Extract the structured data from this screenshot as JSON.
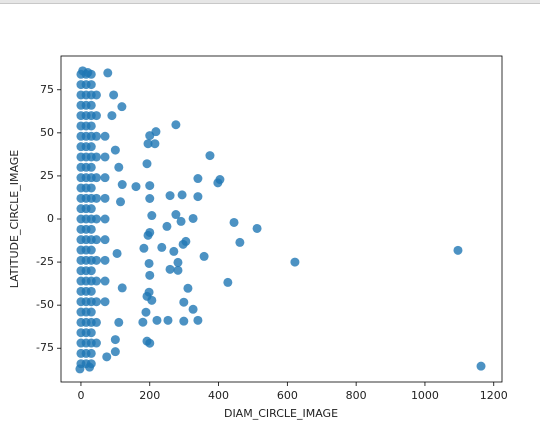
{
  "chart_data": {
    "type": "scatter",
    "xlabel": "DIAM_CIRCLE_IMAGE",
    "ylabel": "LATITUDE_CIRCLE_IMAGE",
    "color": "#1f77b4",
    "xlim": [
      -58,
      1224
    ],
    "ylim": [
      -94.6,
      94.6
    ],
    "xticks": [
      0,
      200,
      400,
      600,
      800,
      1000,
      1200
    ],
    "yticks": [
      -75,
      -50,
      -25,
      0,
      25,
      50,
      75
    ],
    "x": [
      0,
      0,
      0,
      0,
      0,
      0,
      0,
      0,
      0,
      0,
      0,
      0,
      0,
      0,
      0,
      0,
      0,
      0,
      0,
      0,
      0,
      0,
      0,
      0,
      0,
      0,
      0,
      0,
      0,
      15,
      15,
      15,
      15,
      15,
      15,
      15,
      15,
      15,
      15,
      15,
      15,
      15,
      15,
      15,
      15,
      15,
      15,
      15,
      15,
      15,
      15,
      15,
      15,
      15,
      15,
      15,
      15,
      15,
      30,
      30,
      30,
      30,
      30,
      30,
      30,
      30,
      30,
      30,
      30,
      30,
      30,
      30,
      30,
      30,
      30,
      30,
      30,
      30,
      30,
      30,
      30,
      30,
      30,
      30,
      30,
      30,
      30,
      45,
      45,
      45,
      45,
      45,
      45,
      45,
      45,
      45,
      45,
      45,
      45,
      45,
      70,
      70,
      70,
      70,
      70,
      70,
      70,
      70,
      70,
      5,
      20,
      78,
      -3,
      25,
      75,
      100,
      110,
      120,
      100,
      110,
      120,
      105,
      115,
      90,
      95,
      100,
      1163,
      1096,
      622,
      512,
      445,
      462,
      427,
      404,
      398,
      375,
      340,
      340,
      294,
      276,
      291,
      326,
      358,
      305,
      297,
      276,
      340,
      299,
      253,
      326,
      299,
      311,
      282,
      282,
      259,
      270,
      235,
      250,
      259,
      200,
      218,
      215,
      195,
      192,
      160,
      200,
      200,
      206,
      200,
      195,
      183,
      198,
      200,
      198,
      192,
      206,
      189,
      180,
      221,
      192,
      200,
      119
    ],
    "values": [
      -84,
      -78,
      -72,
      -66,
      -60,
      -54,
      -48,
      -42,
      -36,
      -30,
      -24,
      -18,
      -12,
      -6,
      0,
      6,
      12,
      18,
      24,
      30,
      36,
      42,
      48,
      54,
      60,
      66,
      72,
      78,
      84,
      -84,
      -78,
      -72,
      -66,
      -60,
      -54,
      -48,
      -42,
      -36,
      -30,
      -24,
      -18,
      -12,
      -6,
      0,
      6,
      12,
      18,
      24,
      30,
      36,
      42,
      48,
      54,
      60,
      66,
      72,
      78,
      84,
      -84,
      -78,
      -72,
      -66,
      -60,
      -54,
      -48,
      -42,
      -36,
      -30,
      -24,
      -18,
      -12,
      -6,
      0,
      6,
      12,
      18,
      24,
      30,
      36,
      42,
      48,
      54,
      60,
      66,
      72,
      78,
      84,
      -72,
      -60,
      -48,
      -36,
      -24,
      -12,
      0,
      12,
      24,
      36,
      48,
      60,
      72,
      -48,
      -36,
      -24,
      -12,
      0,
      12,
      24,
      36,
      48,
      86,
      85,
      84.8,
      -87,
      -86,
      -80,
      -70,
      -60,
      -40,
      40,
      30,
      20,
      -20,
      10,
      60,
      72,
      -77,
      -85.4,
      -18.2,
      -25,
      -5.5,
      -2,
      -13.6,
      -36.8,
      22.9,
      21,
      36.8,
      23.5,
      13,
      14,
      2.6,
      -1.4,
      0.3,
      -21.7,
      -13,
      -14.7,
      54.7,
      -58.8,
      -59.3,
      -58.8,
      -52.4,
      -48.3,
      -40.2,
      -29.8,
      -25.2,
      -29.2,
      -18.8,
      -16.5,
      -4.3,
      13.6,
      48.4,
      50.7,
      43.7,
      43.7,
      32.1,
      18.8,
      19.4,
      11.9,
      2,
      -7.8,
      -9.5,
      -17,
      -25.8,
      -32.7,
      -42.5,
      -44.9,
      -47.2,
      -54.1,
      -59.9,
      -58.8,
      -70.9,
      -72.1,
      65.2
    ]
  }
}
